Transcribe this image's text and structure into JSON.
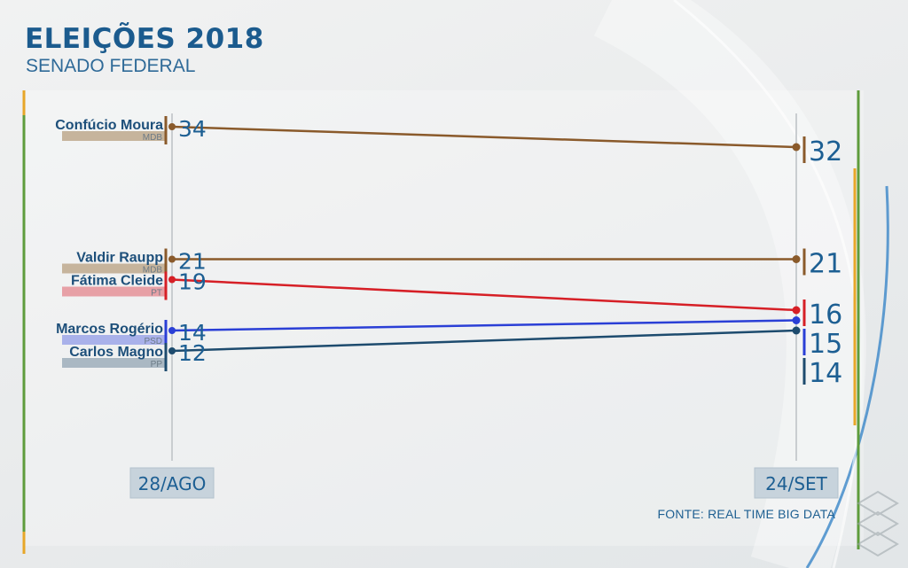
{
  "header": {
    "title": "ELEIÇÕES 2018",
    "subtitle": "SENADO FEDERAL",
    "source": "FONTE: REAL TIME BIG DATA"
  },
  "chart_data": {
    "type": "line",
    "title": "ELEIÇÕES 2018",
    "subtitle": "SENADO FEDERAL",
    "x": [
      "28/AGO",
      "24/SET"
    ],
    "ylim": [
      10,
      36
    ],
    "series": [
      {
        "name": "Confúcio Moura",
        "party": "MDB",
        "values": [
          34,
          32
        ],
        "color": "#8a5a2b",
        "tag_color": "#c6b49c"
      },
      {
        "name": "Valdir Raupp",
        "party": "MDB",
        "values": [
          21,
          21
        ],
        "color": "#8a5a2b",
        "tag_color": "#c6b49c"
      },
      {
        "name": "Fátima Cleide",
        "party": "PT",
        "values": [
          19,
          16
        ],
        "color": "#d61f26",
        "tag_color": "#e7a0a6"
      },
      {
        "name": "Marcos Rogério",
        "party": "PSD",
        "values": [
          14,
          15
        ],
        "color": "#2a3fd6",
        "tag_color": "#a9b1ea"
      },
      {
        "name": "Carlos Magno",
        "party": "PP",
        "values": [
          12,
          14
        ],
        "color": "#1d4b6e",
        "tag_color": "#aab8c3"
      }
    ],
    "label_color": "#1d5f93"
  }
}
